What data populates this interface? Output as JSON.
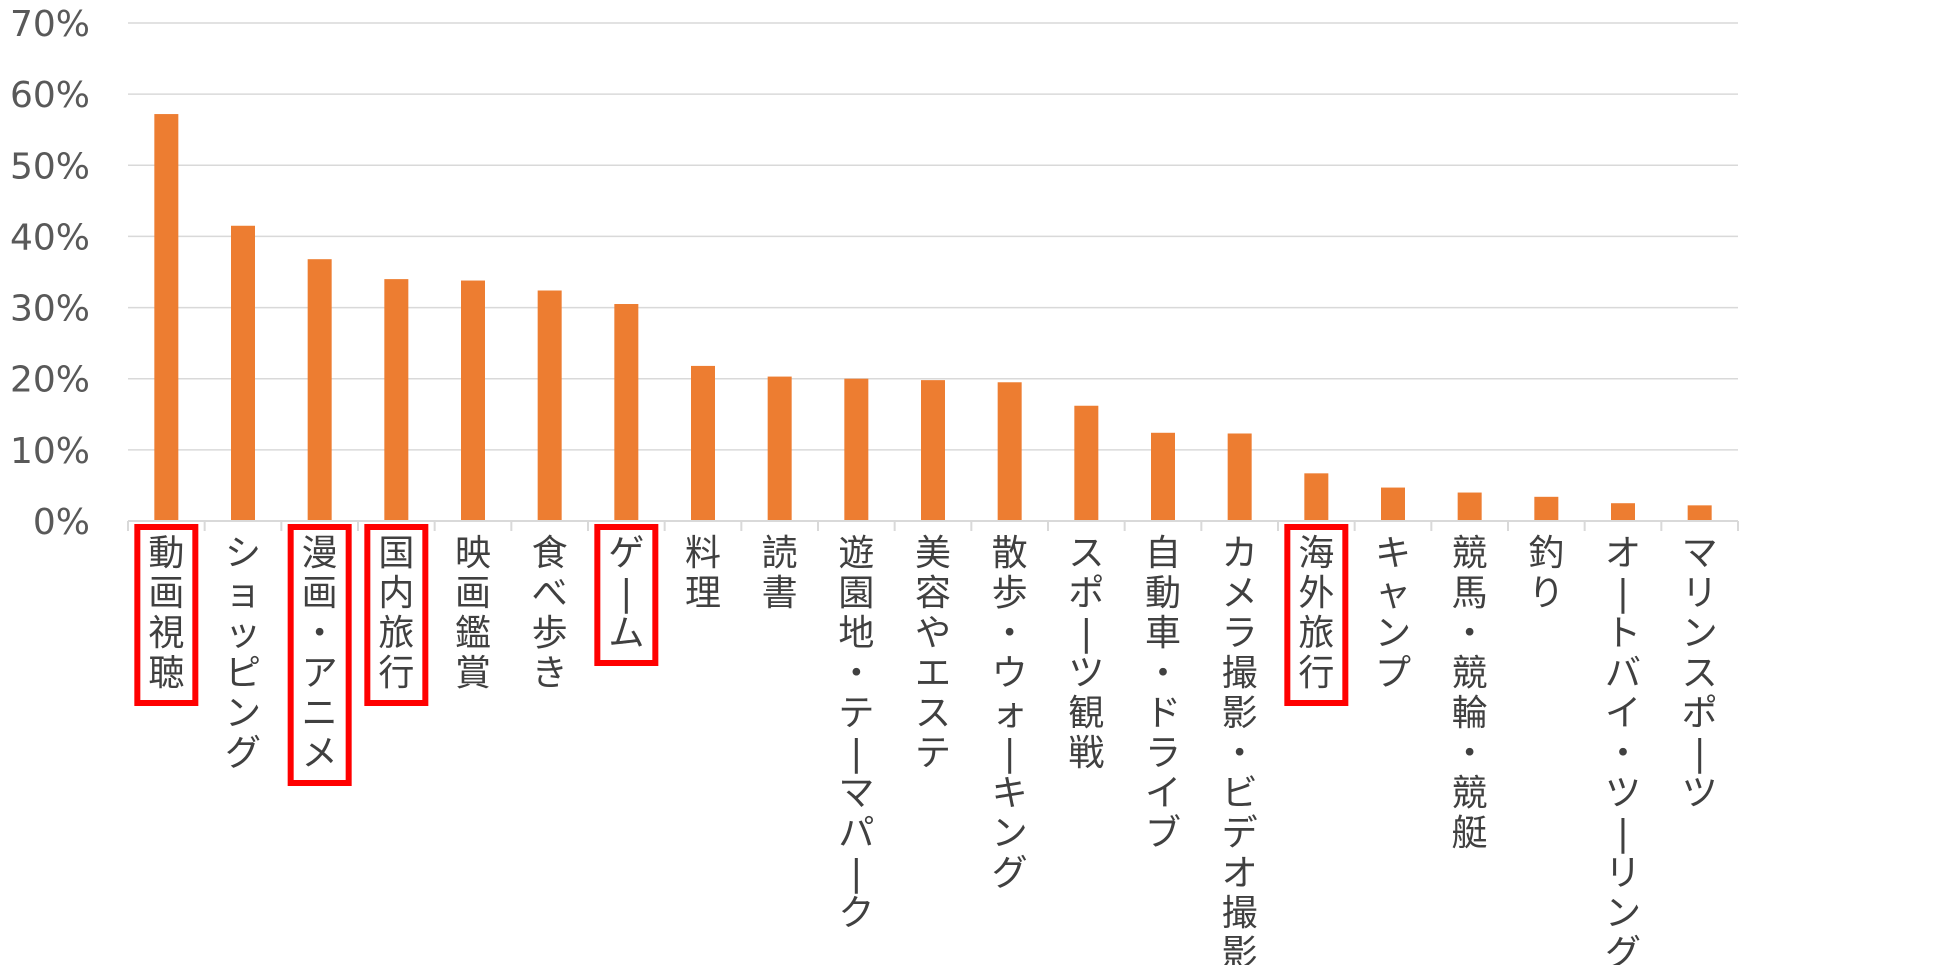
{
  "chart_data": {
    "type": "bar",
    "title": "",
    "xlabel": "",
    "ylabel": "",
    "ylim": [
      0,
      70
    ],
    "y_ticks": [
      "0%",
      "10%",
      "20%",
      "30%",
      "40%",
      "50%",
      "60%",
      "70%"
    ],
    "grid": true,
    "bar_color": "#ED7D31",
    "highlight_color": "#FF0000",
    "categories": [
      "動画視聴",
      "ショッピング",
      "漫画・アニメ",
      "国内旅行",
      "映画鑑賞",
      "食べ歩き",
      "ゲーム",
      "料理",
      "読書",
      "遊園地・テーマパーク",
      "美容やエステ",
      "散歩・ウォーキング",
      "スポーツ観戦",
      "自動車・ドライブ",
      "カメラ撮影・ビデオ撮影",
      "海外旅行",
      "キャンプ",
      "競馬・競輪・競艇",
      "釣り",
      "オートバイ・ツーリング",
      "マリンスポーツ"
    ],
    "values": [
      57.2,
      41.5,
      36.8,
      34.0,
      33.8,
      32.4,
      30.5,
      21.8,
      20.3,
      20.0,
      19.8,
      19.5,
      16.2,
      12.4,
      12.3,
      6.7,
      4.7,
      4.0,
      3.4,
      2.5,
      2.2
    ],
    "highlighted": [
      "動画視聴",
      "漫画・アニメ",
      "国内旅行",
      "ゲーム",
      "海外旅行"
    ]
  }
}
